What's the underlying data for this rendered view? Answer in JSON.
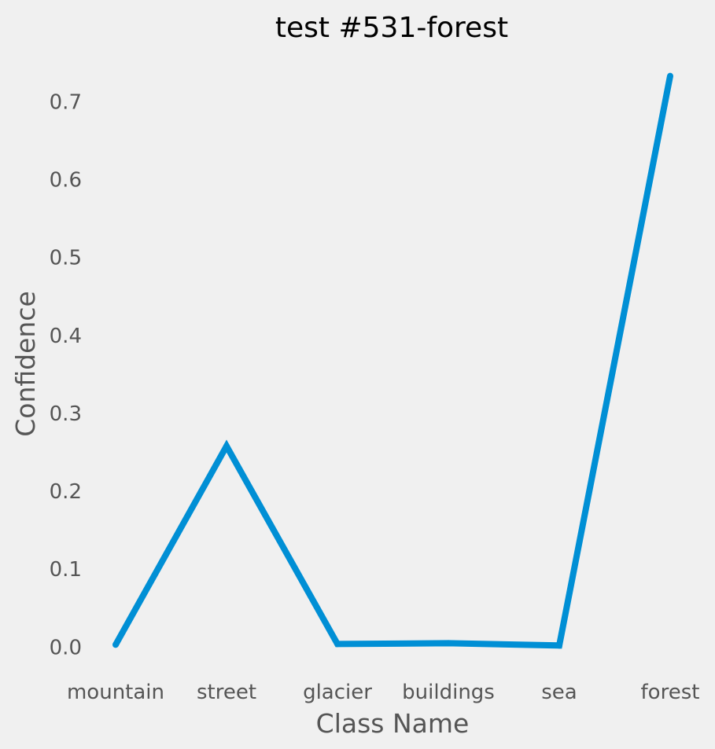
{
  "chart_data": {
    "type": "line",
    "title": "test #531-forest",
    "xlabel": "Class Name",
    "ylabel": "Confidence",
    "categories": [
      "mountain",
      "street",
      "glacier",
      "buildings",
      "sea",
      "forest"
    ],
    "series": [
      {
        "values": [
          0.003,
          0.258,
          0.004,
          0.005,
          0.002,
          0.733
        ]
      }
    ],
    "yticks": [
      "0.0",
      "0.1",
      "0.2",
      "0.3",
      "0.4",
      "0.5",
      "0.6",
      "0.7"
    ],
    "ylim": [
      -0.037,
      0.77
    ],
    "grid": false,
    "legend": "none",
    "line_color": "#008fd5",
    "background": "#f0f0f0"
  }
}
